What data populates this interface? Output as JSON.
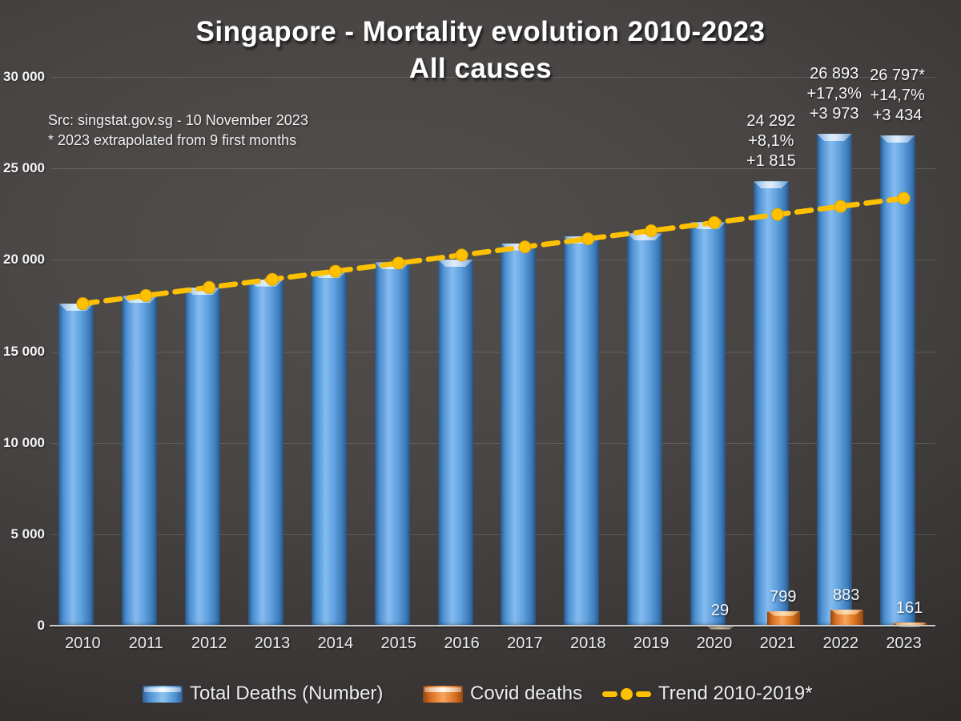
{
  "title": {
    "line1": "Singapore - Mortality evolution 2010-2023",
    "line2": "All causes"
  },
  "source": {
    "line1": "Src: singstat.gov.sg - 10 November 2023",
    "line2": "* 2023 extrapolated from 9 first months"
  },
  "chart_data": {
    "type": "bar",
    "title": "Singapore - Mortality evolution 2010-2023 — All causes",
    "categories": [
      "2010",
      "2011",
      "2012",
      "2013",
      "2014",
      "2015",
      "2016",
      "2017",
      "2018",
      "2019",
      "2020",
      "2021",
      "2022",
      "2023"
    ],
    "series": [
      {
        "name": "Total Deaths (Number)",
        "color": "#5B9BD5",
        "values": [
          17610,
          18027,
          18481,
          18938,
          19393,
          19862,
          20017,
          20905,
          21282,
          21446,
          22054,
          24292,
          26893,
          26797
        ]
      },
      {
        "name": "Covid deaths",
        "color": "#ED7D31",
        "values": [
          0,
          0,
          0,
          0,
          0,
          0,
          0,
          0,
          0,
          0,
          29,
          799,
          883,
          161
        ]
      }
    ],
    "trend_line": {
      "name": "Trend 2010-2019*",
      "color": "#FFC000",
      "style": "dashed-with-markers",
      "values": [
        17604,
        18047,
        18490,
        18933,
        19376,
        19819,
        20262,
        20705,
        21148,
        21591,
        22034,
        22477,
        22920,
        23363
      ]
    },
    "ylim": [
      0,
      30000
    ],
    "ytick_step": 5000,
    "ytick_labels": [
      "0",
      "5 000",
      "10 000",
      "15 000",
      "20 000",
      "25 000",
      "30 000"
    ],
    "grid": true,
    "legend_position": "bottom"
  },
  "covid_bar_labels": [
    {
      "year": "2020",
      "text": "29"
    },
    {
      "year": "2021",
      "text": "799"
    },
    {
      "year": "2022",
      "text": "883"
    },
    {
      "year": "2023",
      "text": "161"
    }
  ],
  "annotations": [
    {
      "year": "2021",
      "lines": [
        "24 292",
        "+8,1%",
        "+1 815"
      ]
    },
    {
      "year": "2022",
      "lines": [
        "26 893",
        "+17,3%",
        "+3 973"
      ]
    },
    {
      "year": "2023",
      "lines": [
        "26 797*",
        "+14,7%",
        "+3 434"
      ]
    }
  ],
  "legend": {
    "items": [
      {
        "label": "Total Deaths (Number)",
        "marker": "bar",
        "color": "#5B9BD5"
      },
      {
        "label": "Covid deaths",
        "marker": "bar",
        "color": "#ED7D31"
      },
      {
        "label": "Trend 2010-2019*",
        "marker": "dashed-line-dot",
        "color": "#FFC000"
      }
    ]
  },
  "colors": {
    "total_bar": "#5B9BD5",
    "covid_bar": "#ED7D31",
    "trend": "#FFC000",
    "text": "#F2F2F2",
    "background_dark": "#2A2827"
  }
}
